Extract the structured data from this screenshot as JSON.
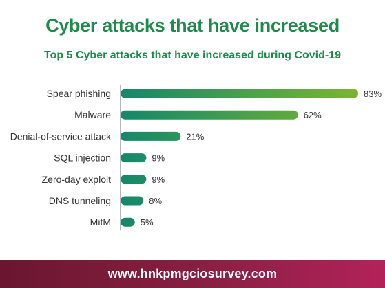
{
  "page": {
    "title": "Cyber attacks that have increased",
    "subtitle": "Top 5 Cyber attacks that have increased during Covid-19",
    "footer_url": "www.hnkpmgciosurvey.com"
  },
  "colors": {
    "title": "#1f8a4c",
    "bar_start": "#15876a",
    "bar_end": "#7ab62f",
    "footer_left": "#6a1630",
    "footer_right": "#b3225a"
  },
  "chart_data": {
    "type": "bar",
    "orientation": "horizontal",
    "categories": [
      "Spear phishing",
      "Malware",
      "Denial-of-service attack",
      "SQL injection",
      "Zero-day exploit",
      "DNS tunneling",
      "MitM"
    ],
    "values": [
      83,
      62,
      21,
      9,
      9,
      8,
      5
    ],
    "value_labels": [
      "83%",
      "62%",
      "21%",
      "9%",
      "9%",
      "8%",
      "5%"
    ],
    "unit": "%",
    "title": "Top 5 Cyber attacks that have increased during Covid-19",
    "xlim": [
      0,
      83
    ],
    "grid": false,
    "legend": "none"
  }
}
